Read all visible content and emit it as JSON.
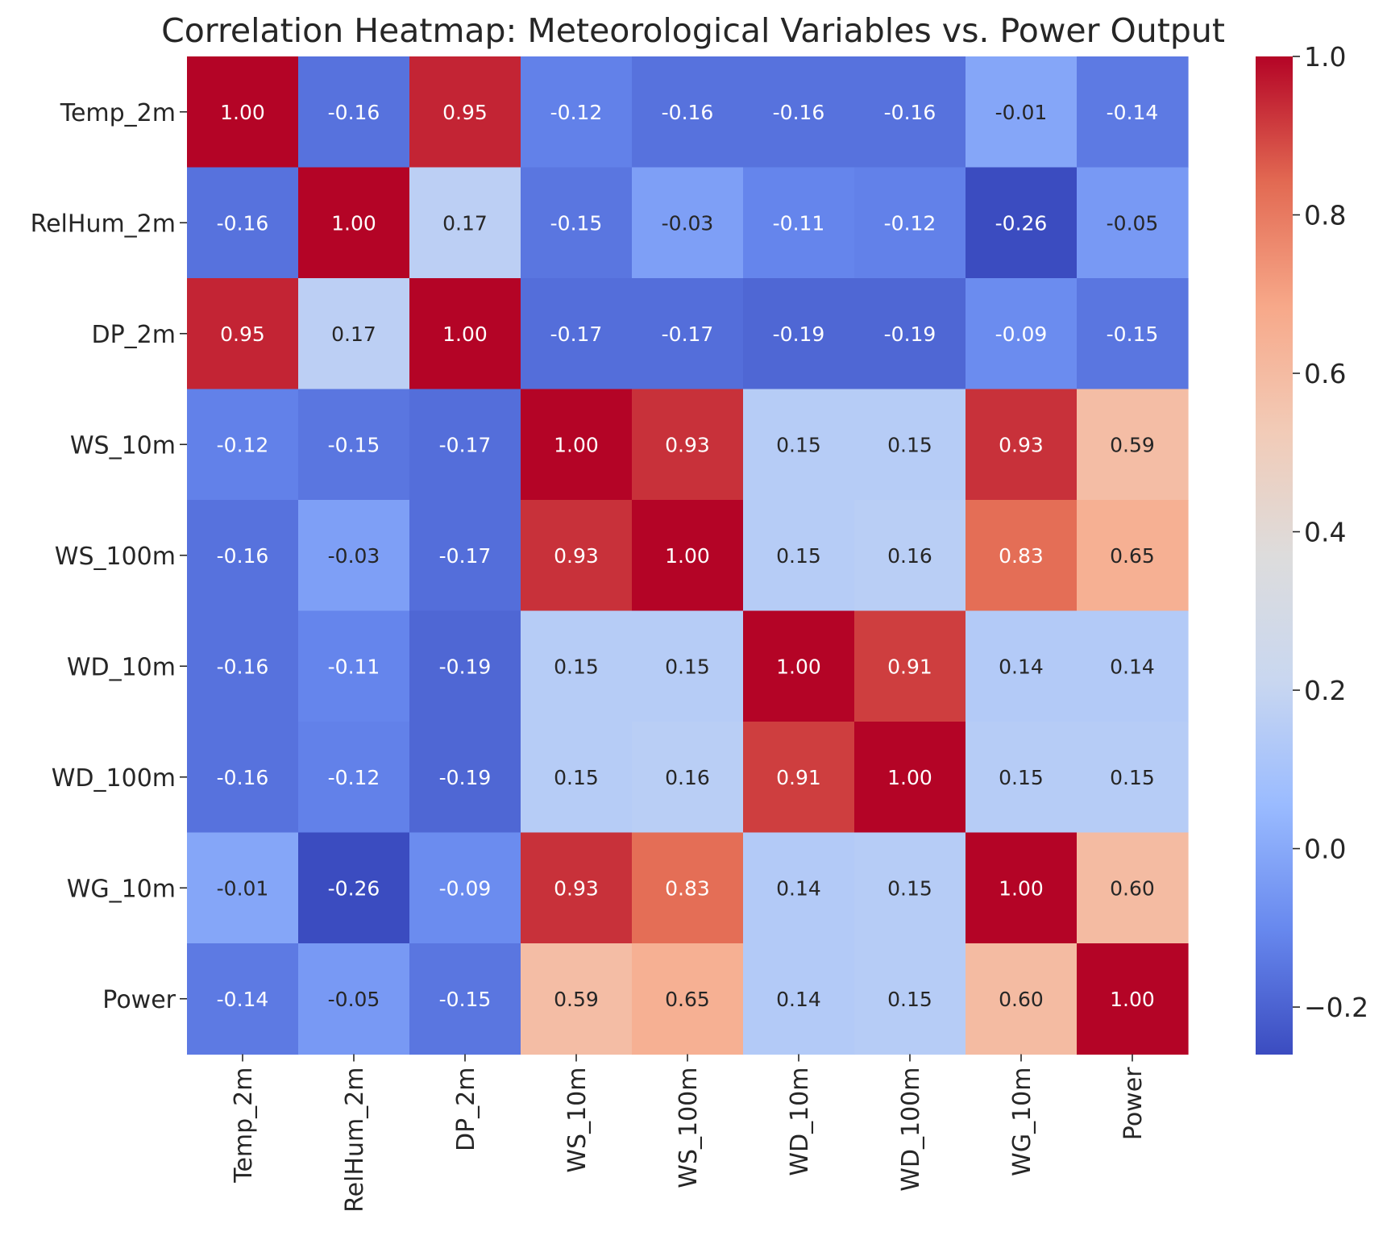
{
  "chart_data": {
    "type": "heatmap",
    "title": "Correlation Heatmap: Meteorological Variables vs. Power Output",
    "x_labels": [
      "Temp_2m",
      "RelHum_2m",
      "DP_2m",
      "WS_10m",
      "WS_100m",
      "WD_10m",
      "WD_100m",
      "WG_10m",
      "Power"
    ],
    "y_labels": [
      "Temp_2m",
      "RelHum_2m",
      "DP_2m",
      "WS_10m",
      "WS_100m",
      "WD_10m",
      "WD_100m",
      "WG_10m",
      "Power"
    ],
    "values": [
      [
        1.0,
        -0.16,
        0.95,
        -0.12,
        -0.16,
        -0.16,
        -0.16,
        -0.01,
        -0.14
      ],
      [
        -0.16,
        1.0,
        0.17,
        -0.15,
        -0.03,
        -0.11,
        -0.12,
        -0.26,
        -0.05
      ],
      [
        0.95,
        0.17,
        1.0,
        -0.17,
        -0.17,
        -0.19,
        -0.19,
        -0.09,
        -0.15
      ],
      [
        -0.12,
        -0.15,
        -0.17,
        1.0,
        0.93,
        0.15,
        0.15,
        0.93,
        0.59
      ],
      [
        -0.16,
        -0.03,
        -0.17,
        0.93,
        1.0,
        0.15,
        0.16,
        0.83,
        0.65
      ],
      [
        -0.16,
        -0.11,
        -0.19,
        0.15,
        0.15,
        1.0,
        0.91,
        0.14,
        0.14
      ],
      [
        -0.16,
        -0.12,
        -0.19,
        0.15,
        0.16,
        0.91,
        1.0,
        0.15,
        0.15
      ],
      [
        -0.01,
        -0.26,
        -0.09,
        0.93,
        0.83,
        0.14,
        0.15,
        1.0,
        0.6
      ],
      [
        -0.14,
        -0.05,
        -0.15,
        0.59,
        0.65,
        0.14,
        0.15,
        0.6,
        1.0
      ]
    ],
    "value_format": "0.00",
    "colormap": "coolwarm",
    "colormap_stops": [
      "#3b4cc0",
      "#6788ee",
      "#9abbff",
      "#c9d7f0",
      "#dddcdc",
      "#f2cbb7",
      "#f7a889",
      "#e26952",
      "#b40426"
    ],
    "vrange": [
      -0.26,
      1.0
    ],
    "colorbar": {
      "ticks": [
        -0.2,
        0.0,
        0.2,
        0.4,
        0.6,
        0.8,
        1.0
      ],
      "tick_labels": [
        "−0.2",
        "0.0",
        "0.2",
        "0.4",
        "0.6",
        "0.8",
        "1.0"
      ]
    },
    "grid": false,
    "legend": "none"
  }
}
